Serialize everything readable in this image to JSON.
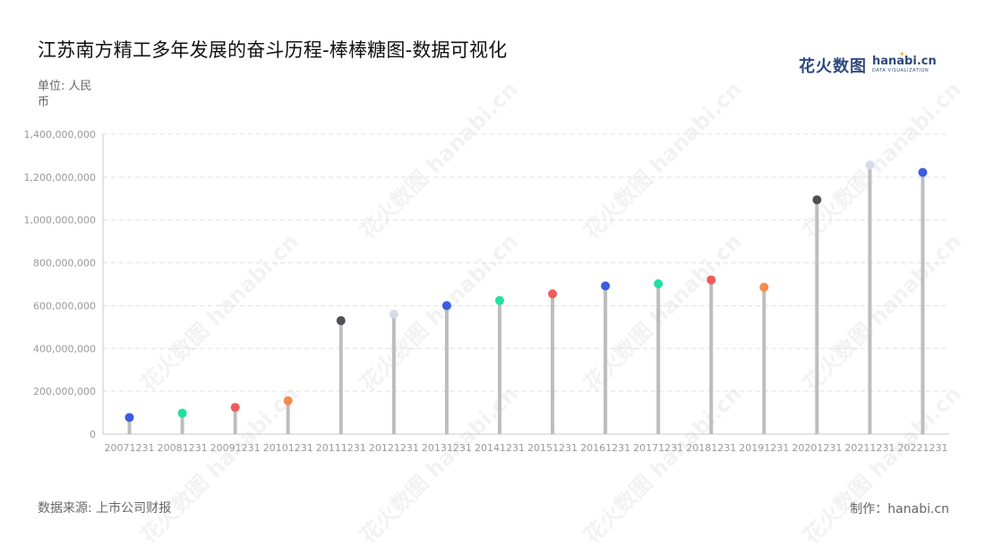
{
  "title": "江苏南方精工多年发展的奋斗历程-棒棒糖图-数据可视化",
  "unit": "单位: 人民币",
  "source": "数据来源: 上市公司财报",
  "maker": "制作：hanabi.cn",
  "logo": {
    "zh": "花火数图",
    "en": "hanabi.cn",
    "sub": "DATA VISUALIZATION"
  },
  "watermark": "花火数图 hanabi.cn",
  "chart_data": {
    "type": "lollipop",
    "title": "江苏南方精工多年发展的奋斗历程-棒棒糖图-数据可视化",
    "ylabel": "单位: 人民币",
    "ylim": [
      0,
      1400000000
    ],
    "yticks": [
      0,
      200000000,
      400000000,
      600000000,
      800000000,
      1000000000,
      1200000000,
      1400000000
    ],
    "ytick_labels": [
      "0",
      "200,000,000",
      "400,000,000",
      "600,000,000",
      "800,000,000",
      "1,000,000,000",
      "1,200,000,000",
      "1,400,000,000"
    ],
    "grid": "horizontal dashed",
    "categories": [
      "20071231",
      "20081231",
      "20091231",
      "20101231",
      "20111231",
      "20121231",
      "20131231",
      "20141231",
      "20151231",
      "20161231",
      "20171231",
      "20181231",
      "20191231",
      "20201231",
      "20211231",
      "20221231"
    ],
    "values": [
      78000000,
      98000000,
      125000000,
      156000000,
      530000000,
      560000000,
      600000000,
      624000000,
      655000000,
      692000000,
      702000000,
      720000000,
      686000000,
      1094000000,
      1256000000,
      1222000000
    ],
    "colors": [
      "#3d5be0",
      "#1fe0a0",
      "#ef5b5b",
      "#f58b4c",
      "#505057",
      "#d6dbea",
      "#3d5be0",
      "#1fe0a0",
      "#ef5b5b",
      "#3d5be0",
      "#1fe0a0",
      "#ef5b5b",
      "#f58b4c",
      "#505057",
      "#d6dbea",
      "#3d5be0"
    ],
    "stem_color": "#bdbdbd"
  }
}
